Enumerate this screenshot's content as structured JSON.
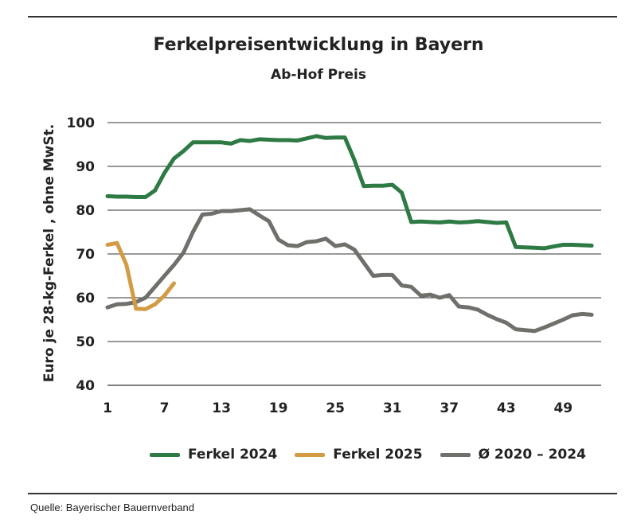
{
  "chart_data": {
    "type": "line",
    "title": "Ferkelpreisentwicklung in Bayern",
    "subtitle": "Ab-Hof Preis",
    "ylabel": "Euro je 28-kg-Ferkel , ohne MwSt.",
    "xlabel": "",
    "ylim": [
      40,
      100
    ],
    "xlim": [
      1,
      53
    ],
    "yticks": [
      40,
      50,
      60,
      70,
      80,
      90,
      100
    ],
    "xticks": [
      1,
      7,
      13,
      19,
      25,
      31,
      37,
      43,
      49
    ],
    "grid": "horizontal",
    "legend_position": "bottom",
    "series": [
      {
        "name": "Ferkel 2024",
        "color": "#2e7a45",
        "x": [
          1,
          2,
          3,
          4,
          5,
          6,
          7,
          8,
          9,
          10,
          11,
          12,
          13,
          14,
          15,
          16,
          17,
          18,
          19,
          20,
          21,
          22,
          23,
          24,
          25,
          26,
          27,
          28,
          29,
          30,
          31,
          32,
          33,
          34,
          35,
          36,
          37,
          38,
          39,
          40,
          41,
          42,
          43,
          44,
          45,
          46,
          47,
          48,
          49,
          50,
          51,
          52
        ],
        "values": [
          83.2,
          83.1,
          83.1,
          83.0,
          83.0,
          84.5,
          88.5,
          91.8,
          93.5,
          95.5,
          95.5,
          95.5,
          95.5,
          95.2,
          96.0,
          95.8,
          96.2,
          96.1,
          96.0,
          96.0,
          95.9,
          96.4,
          96.9,
          96.5,
          96.6,
          96.6,
          91.5,
          85.5,
          85.6,
          85.6,
          85.8,
          84.0,
          77.3,
          77.4,
          77.3,
          77.2,
          77.4,
          77.2,
          77.3,
          77.5,
          77.3,
          77.1,
          77.2,
          71.6,
          71.5,
          71.4,
          71.3,
          71.7,
          72.1,
          72.1,
          72.0,
          71.9
        ]
      },
      {
        "name": "Ferkel 2025",
        "color": "#d39b44",
        "x": [
          1,
          2,
          3,
          4,
          5,
          6,
          7,
          8
        ],
        "values": [
          72.1,
          72.5,
          67.5,
          57.5,
          57.4,
          58.5,
          60.5,
          63.3
        ]
      },
      {
        "name": "Ø 2020 – 2024",
        "color": "#6f706c",
        "x": [
          1,
          2,
          3,
          4,
          5,
          6,
          7,
          8,
          9,
          10,
          11,
          12,
          13,
          14,
          15,
          16,
          17,
          18,
          19,
          20,
          21,
          22,
          23,
          24,
          25,
          26,
          27,
          28,
          29,
          30,
          31,
          32,
          33,
          34,
          35,
          36,
          37,
          38,
          39,
          40,
          41,
          42,
          43,
          44,
          45,
          46,
          47,
          48,
          49,
          50,
          51,
          52
        ],
        "values": [
          57.8,
          58.5,
          58.6,
          59.0,
          60.0,
          62.5,
          65.0,
          67.5,
          70.3,
          75.0,
          79.0,
          79.2,
          79.8,
          79.8,
          80.0,
          80.2,
          78.8,
          77.5,
          73.3,
          72.0,
          71.8,
          72.7,
          72.9,
          73.5,
          71.8,
          72.2,
          71.0,
          68.0,
          65.0,
          65.2,
          65.2,
          62.8,
          62.5,
          60.5,
          60.7,
          60.0,
          60.6,
          58.0,
          57.8,
          57.3,
          56.1,
          55.1,
          54.3,
          52.8,
          52.6,
          52.4,
          53.2,
          54.1,
          55.0,
          56.0,
          56.3,
          56.1
        ]
      }
    ]
  },
  "source": "Quelle: Bayerischer Bauernverband"
}
